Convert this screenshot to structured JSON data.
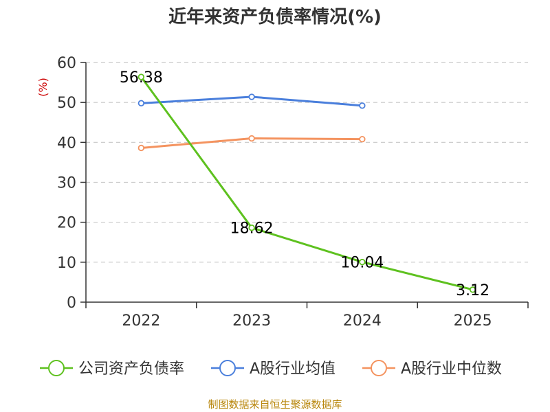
{
  "chart_data": {
    "type": "line",
    "title": "近年来资产负债率情况(%)",
    "ylabel": "(%)",
    "xlabel": "",
    "categories": [
      "2022",
      "2023",
      "2024",
      "2025"
    ],
    "ylim": [
      0,
      60
    ],
    "yticks": [
      0,
      10,
      20,
      30,
      40,
      50,
      60
    ],
    "grid": true,
    "legend_position": "bottom",
    "series": [
      {
        "name": "公司资产负债率",
        "color": "#5ec11f",
        "values": [
          56.38,
          18.62,
          10.04,
          3.12
        ],
        "data_labels": [
          "56.38",
          "18.62",
          "10.04",
          "3.12"
        ]
      },
      {
        "name": "A股行业均值",
        "color": "#4a7fdc",
        "values": [
          49.8,
          51.4,
          49.2,
          null
        ],
        "data_labels": []
      },
      {
        "name": "A股行业中位数",
        "color": "#f4935f",
        "values": [
          38.6,
          41.0,
          40.8,
          null
        ],
        "data_labels": []
      }
    ]
  },
  "footer": "制图数据来自恒生聚源数据库"
}
